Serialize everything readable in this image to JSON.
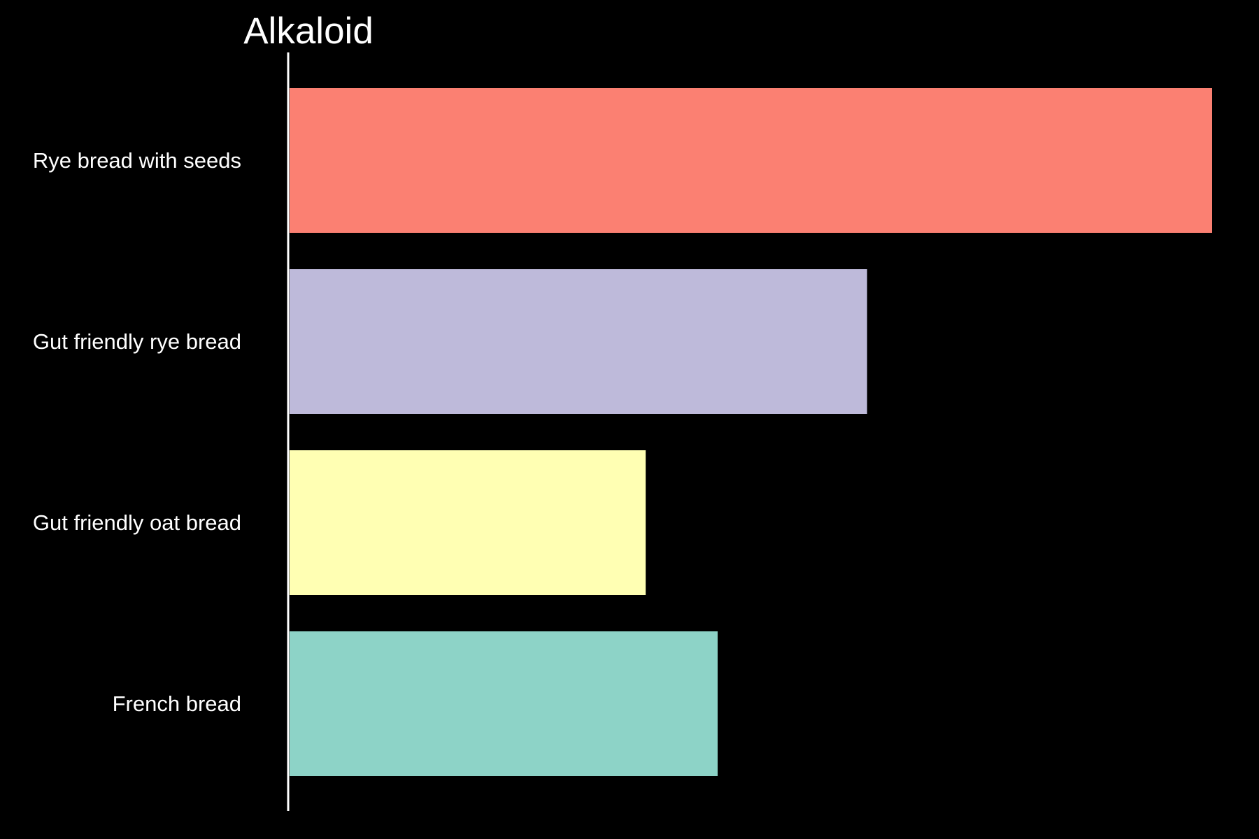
{
  "chart_data": {
    "type": "bar",
    "orientation": "horizontal",
    "title": "Alkaloid",
    "xlabel": "",
    "ylabel": "",
    "categories": [
      "Rye bread with seeds",
      "Gut friendly rye bread",
      "Gut friendly oat bread",
      "French bread"
    ],
    "values": [
      100,
      62.6,
      38.6,
      46.4
    ],
    "colors": [
      "#fb8072",
      "#bebada",
      "#ffffb3",
      "#8dd3c7"
    ],
    "xlim": [
      0,
      100
    ],
    "grid": false,
    "legend": "none",
    "background": "#000000",
    "text_color": "#ffffff"
  }
}
